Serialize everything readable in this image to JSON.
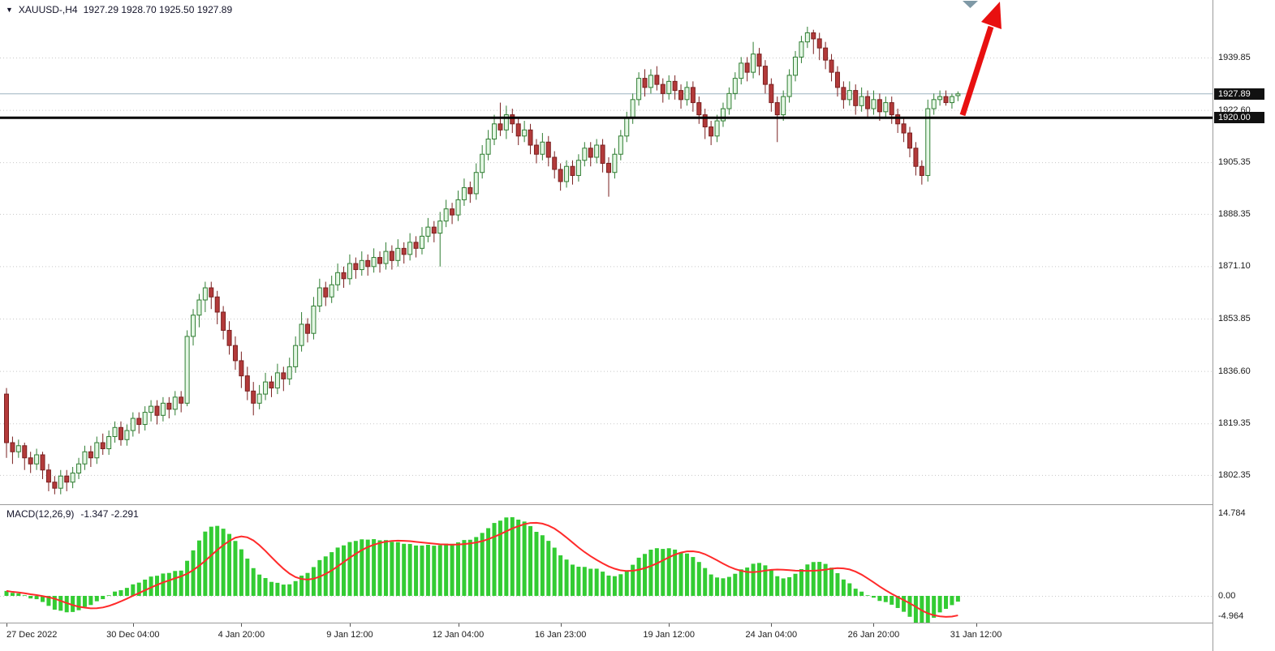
{
  "header": {
    "symbol_label": "XAUUSD-,H4",
    "ohlc": "1927.29 1928.70 1925.50 1927.89"
  },
  "chart_data": {
    "type": "candlestick_with_macd",
    "title": "XAUUSD- H4 chart with MACD indicator and 1920.00 horizontal support line, red up arrow annotation",
    "price_axis": {
      "gridlines": [
        1939.85,
        1922.6,
        1905.35,
        1888.35,
        1871.1,
        1853.85,
        1836.6,
        1819.35,
        1802.35
      ],
      "labels": [
        "1939.85",
        "1922.60",
        "1905.35",
        "1888.35",
        "1871.10",
        "1853.85",
        "1836.60",
        "1819.35",
        "1802.35"
      ],
      "current_price": 1927.89,
      "current_label": "1927.89",
      "hline": 1920.0,
      "hline_label": "1920.00"
    },
    "time_axis": {
      "labels": [
        {
          "text": "27 Dec 2022",
          "index": 0
        },
        {
          "text": "30 Dec 04:00",
          "index": 21
        },
        {
          "text": "4 Jan 20:00",
          "index": 39
        },
        {
          "text": "9 Jan 12:00",
          "index": 57
        },
        {
          "text": "12 Jan 04:00",
          "index": 75
        },
        {
          "text": "16 Jan 23:00",
          "index": 92
        },
        {
          "text": "19 Jan 12:00",
          "index": 110
        },
        {
          "text": "24 Jan 04:00",
          "index": 127
        },
        {
          "text": "26 Jan 20:00",
          "index": 144
        },
        {
          "text": "31 Jan 12:00",
          "index": 161
        }
      ]
    },
    "macd": {
      "label": "MACD(12,26,9)",
      "values_text": "-1.347 -2.291",
      "periods": [
        12,
        26,
        9
      ],
      "axis_labels": [
        "14.784",
        "0.00",
        "-4.964"
      ],
      "axis_values": [
        14.784,
        0,
        -4.964
      ]
    },
    "candles": [
      [
        1829,
        1831,
        1808,
        1813
      ],
      [
        1813,
        1815,
        1806,
        1810
      ],
      [
        1810,
        1814,
        1808,
        1812
      ],
      [
        1812,
        1813,
        1804,
        1808
      ],
      [
        1808,
        1810,
        1803,
        1806
      ],
      [
        1806,
        1811,
        1804,
        1809
      ],
      [
        1809,
        1810,
        1801,
        1804
      ],
      [
        1804,
        1806,
        1797,
        1800
      ],
      [
        1800,
        1802,
        1796,
        1798
      ],
      [
        1798,
        1804,
        1796,
        1802
      ],
      [
        1802,
        1804,
        1797,
        1800
      ],
      [
        1800,
        1805,
        1798,
        1803
      ],
      [
        1803,
        1808,
        1801,
        1806
      ],
      [
        1806,
        1812,
        1804,
        1810
      ],
      [
        1810,
        1812,
        1805,
        1808
      ],
      [
        1808,
        1815,
        1806,
        1813
      ],
      [
        1813,
        1816,
        1809,
        1811
      ],
      [
        1811,
        1817,
        1809,
        1815
      ],
      [
        1815,
        1820,
        1813,
        1818
      ],
      [
        1818,
        1820,
        1812,
        1814
      ],
      [
        1814,
        1819,
        1812,
        1817
      ],
      [
        1817,
        1823,
        1815,
        1821
      ],
      [
        1821,
        1823,
        1816,
        1819
      ],
      [
        1819,
        1825,
        1817,
        1823
      ],
      [
        1823,
        1827,
        1820,
        1825
      ],
      [
        1825,
        1827,
        1819,
        1822
      ],
      [
        1822,
        1828,
        1820,
        1826
      ],
      [
        1826,
        1828,
        1821,
        1824
      ],
      [
        1824,
        1830,
        1822,
        1828
      ],
      [
        1828,
        1830,
        1823,
        1826
      ],
      [
        1826,
        1850,
        1825,
        1848
      ],
      [
        1848,
        1857,
        1845,
        1855
      ],
      [
        1855,
        1862,
        1851,
        1860
      ],
      [
        1860,
        1866,
        1856,
        1864
      ],
      [
        1864,
        1866,
        1857,
        1861
      ],
      [
        1861,
        1863,
        1852,
        1856
      ],
      [
        1856,
        1858,
        1847,
        1850
      ],
      [
        1850,
        1853,
        1842,
        1845
      ],
      [
        1845,
        1848,
        1837,
        1840
      ],
      [
        1840,
        1843,
        1831,
        1835
      ],
      [
        1835,
        1838,
        1827,
        1830
      ],
      [
        1830,
        1833,
        1822,
        1826
      ],
      [
        1826,
        1832,
        1824,
        1829
      ],
      [
        1829,
        1836,
        1827,
        1833
      ],
      [
        1833,
        1835,
        1828,
        1831
      ],
      [
        1831,
        1839,
        1829,
        1836
      ],
      [
        1836,
        1838,
        1830,
        1834
      ],
      [
        1834,
        1841,
        1832,
        1838
      ],
      [
        1838,
        1848,
        1836,
        1845
      ],
      [
        1845,
        1856,
        1843,
        1852
      ],
      [
        1852,
        1854,
        1846,
        1849
      ],
      [
        1849,
        1861,
        1847,
        1858
      ],
      [
        1858,
        1867,
        1856,
        1864
      ],
      [
        1864,
        1866,
        1858,
        1861
      ],
      [
        1861,
        1868,
        1859,
        1865
      ],
      [
        1865,
        1872,
        1863,
        1869
      ],
      [
        1869,
        1871,
        1864,
        1867
      ],
      [
        1867,
        1875,
        1865,
        1872
      ],
      [
        1872,
        1874,
        1867,
        1870
      ],
      [
        1870,
        1876,
        1868,
        1873
      ],
      [
        1873,
        1875,
        1868,
        1871
      ],
      [
        1871,
        1877,
        1869,
        1874
      ],
      [
        1874,
        1876,
        1869,
        1872
      ],
      [
        1872,
        1879,
        1870,
        1876
      ],
      [
        1876,
        1878,
        1870,
        1873
      ],
      [
        1873,
        1880,
        1871,
        1877
      ],
      [
        1877,
        1879,
        1872,
        1875
      ],
      [
        1875,
        1882,
        1873,
        1879
      ],
      [
        1879,
        1881,
        1874,
        1877
      ],
      [
        1877,
        1884,
        1875,
        1881
      ],
      [
        1881,
        1887,
        1879,
        1884
      ],
      [
        1884,
        1886,
        1879,
        1882
      ],
      [
        1882,
        1889,
        1871,
        1886
      ],
      [
        1886,
        1893,
        1884,
        1890
      ],
      [
        1890,
        1892,
        1885,
        1888
      ],
      [
        1888,
        1896,
        1886,
        1893
      ],
      [
        1893,
        1900,
        1891,
        1897
      ],
      [
        1897,
        1899,
        1892,
        1895
      ],
      [
        1895,
        1905,
        1893,
        1902
      ],
      [
        1902,
        1911,
        1900,
        1908
      ],
      [
        1908,
        1916,
        1906,
        1913
      ],
      [
        1913,
        1921,
        1911,
        1918
      ],
      [
        1918,
        1925,
        1914,
        1916
      ],
      [
        1916,
        1924,
        1913,
        1921
      ],
      [
        1921,
        1923,
        1915,
        1918
      ],
      [
        1918,
        1920,
        1911,
        1914
      ],
      [
        1914,
        1919,
        1912,
        1916
      ],
      [
        1916,
        1918,
        1908,
        1911
      ],
      [
        1911,
        1913,
        1905,
        1908
      ],
      [
        1908,
        1915,
        1906,
        1912
      ],
      [
        1912,
        1914,
        1904,
        1907
      ],
      [
        1907,
        1909,
        1900,
        1903
      ],
      [
        1903,
        1905,
        1896,
        1899
      ],
      [
        1899,
        1906,
        1897,
        1904
      ],
      [
        1904,
        1906,
        1898,
        1901
      ],
      [
        1901,
        1908,
        1899,
        1906
      ],
      [
        1906,
        1912,
        1904,
        1910
      ],
      [
        1910,
        1912,
        1904,
        1907
      ],
      [
        1907,
        1913,
        1905,
        1911
      ],
      [
        1911,
        1913,
        1902,
        1905
      ],
      [
        1905,
        1907,
        1894,
        1902
      ],
      [
        1902,
        1910,
        1900,
        1908
      ],
      [
        1908,
        1916,
        1906,
        1914
      ],
      [
        1914,
        1922,
        1912,
        1920
      ],
      [
        1920,
        1928,
        1918,
        1926
      ],
      [
        1926,
        1935,
        1924,
        1933
      ],
      [
        1933,
        1936,
        1927,
        1930
      ],
      [
        1930,
        1936,
        1928,
        1934
      ],
      [
        1934,
        1937,
        1929,
        1931
      ],
      [
        1931,
        1933,
        1925,
        1928
      ],
      [
        1928,
        1934,
        1926,
        1932
      ],
      [
        1932,
        1934,
        1926,
        1929
      ],
      [
        1929,
        1931,
        1923,
        1926
      ],
      [
        1926,
        1932,
        1924,
        1930
      ],
      [
        1930,
        1932,
        1922,
        1925
      ],
      [
        1925,
        1927,
        1918,
        1921
      ],
      [
        1921,
        1923,
        1913,
        1917
      ],
      [
        1917,
        1919,
        1911,
        1914
      ],
      [
        1914,
        1921,
        1912,
        1919
      ],
      [
        1919,
        1925,
        1917,
        1923
      ],
      [
        1923,
        1930,
        1921,
        1928
      ],
      [
        1928,
        1935,
        1926,
        1933
      ],
      [
        1933,
        1940,
        1931,
        1938
      ],
      [
        1938,
        1940,
        1932,
        1935
      ],
      [
        1935,
        1945,
        1933,
        1941
      ],
      [
        1941,
        1943,
        1934,
        1937
      ],
      [
        1937,
        1939,
        1928,
        1931
      ],
      [
        1931,
        1933,
        1922,
        1925
      ],
      [
        1925,
        1927,
        1912,
        1921
      ],
      [
        1921,
        1929,
        1919,
        1927
      ],
      [
        1927,
        1936,
        1925,
        1934
      ],
      [
        1934,
        1942,
        1932,
        1940
      ],
      [
        1940,
        1947,
        1938,
        1945
      ],
      [
        1945,
        1950,
        1943,
        1948
      ],
      [
        1948,
        1949,
        1941,
        1946
      ],
      [
        1946,
        1948,
        1939,
        1943
      ],
      [
        1943,
        1945,
        1936,
        1939
      ],
      [
        1939,
        1941,
        1932,
        1935
      ],
      [
        1935,
        1937,
        1927,
        1930
      ],
      [
        1930,
        1932,
        1923,
        1926
      ],
      [
        1926,
        1932,
        1924,
        1929
      ],
      [
        1929,
        1931,
        1921,
        1924
      ],
      [
        1924,
        1930,
        1922,
        1927
      ],
      [
        1927,
        1929,
        1920,
        1923
      ],
      [
        1923,
        1929,
        1921,
        1926
      ],
      [
        1926,
        1928,
        1919,
        1922
      ],
      [
        1922,
        1927,
        1920,
        1925
      ],
      [
        1925,
        1927,
        1918,
        1921
      ],
      [
        1921,
        1923,
        1915,
        1918
      ],
      [
        1918,
        1920,
        1912,
        1915
      ],
      [
        1915,
        1917,
        1907,
        1910
      ],
      [
        1910,
        1912,
        1901,
        1904
      ],
      [
        1904,
        1906,
        1898,
        1901
      ],
      [
        1901,
        1926,
        1899,
        1923
      ],
      [
        1923,
        1928,
        1921,
        1926
      ],
      [
        1926,
        1929,
        1924,
        1927
      ],
      [
        1927,
        1929,
        1924,
        1925
      ],
      [
        1925,
        1928,
        1923,
        1927
      ],
      [
        1927.29,
        1928.7,
        1925.5,
        1927.89
      ]
    ],
    "colors": {
      "background": "#ffffff",
      "grid": "#c8c8c8",
      "up_fill": "#e4f7e4",
      "up_border": "#2f7d32",
      "down_fill": "#b33a3a",
      "down_border": "#7a2020",
      "macd_hist": "#33cc33",
      "macd_signal": "#ff2a2a",
      "hline": "#000000",
      "bid_line": "#9db4c0",
      "arrow": "#e81010",
      "axis_text": "#1a1a1a",
      "label_bg": "#111111",
      "label_text": "#ffffff",
      "separator": "#9a9a9a",
      "shift_marker": "#7f99a6"
    }
  },
  "annotations": {
    "trend_arrow": {
      "direction": "up",
      "color": "#e81010"
    },
    "horizontal_line": {
      "price": 1920.0,
      "label": "1920.00"
    }
  }
}
